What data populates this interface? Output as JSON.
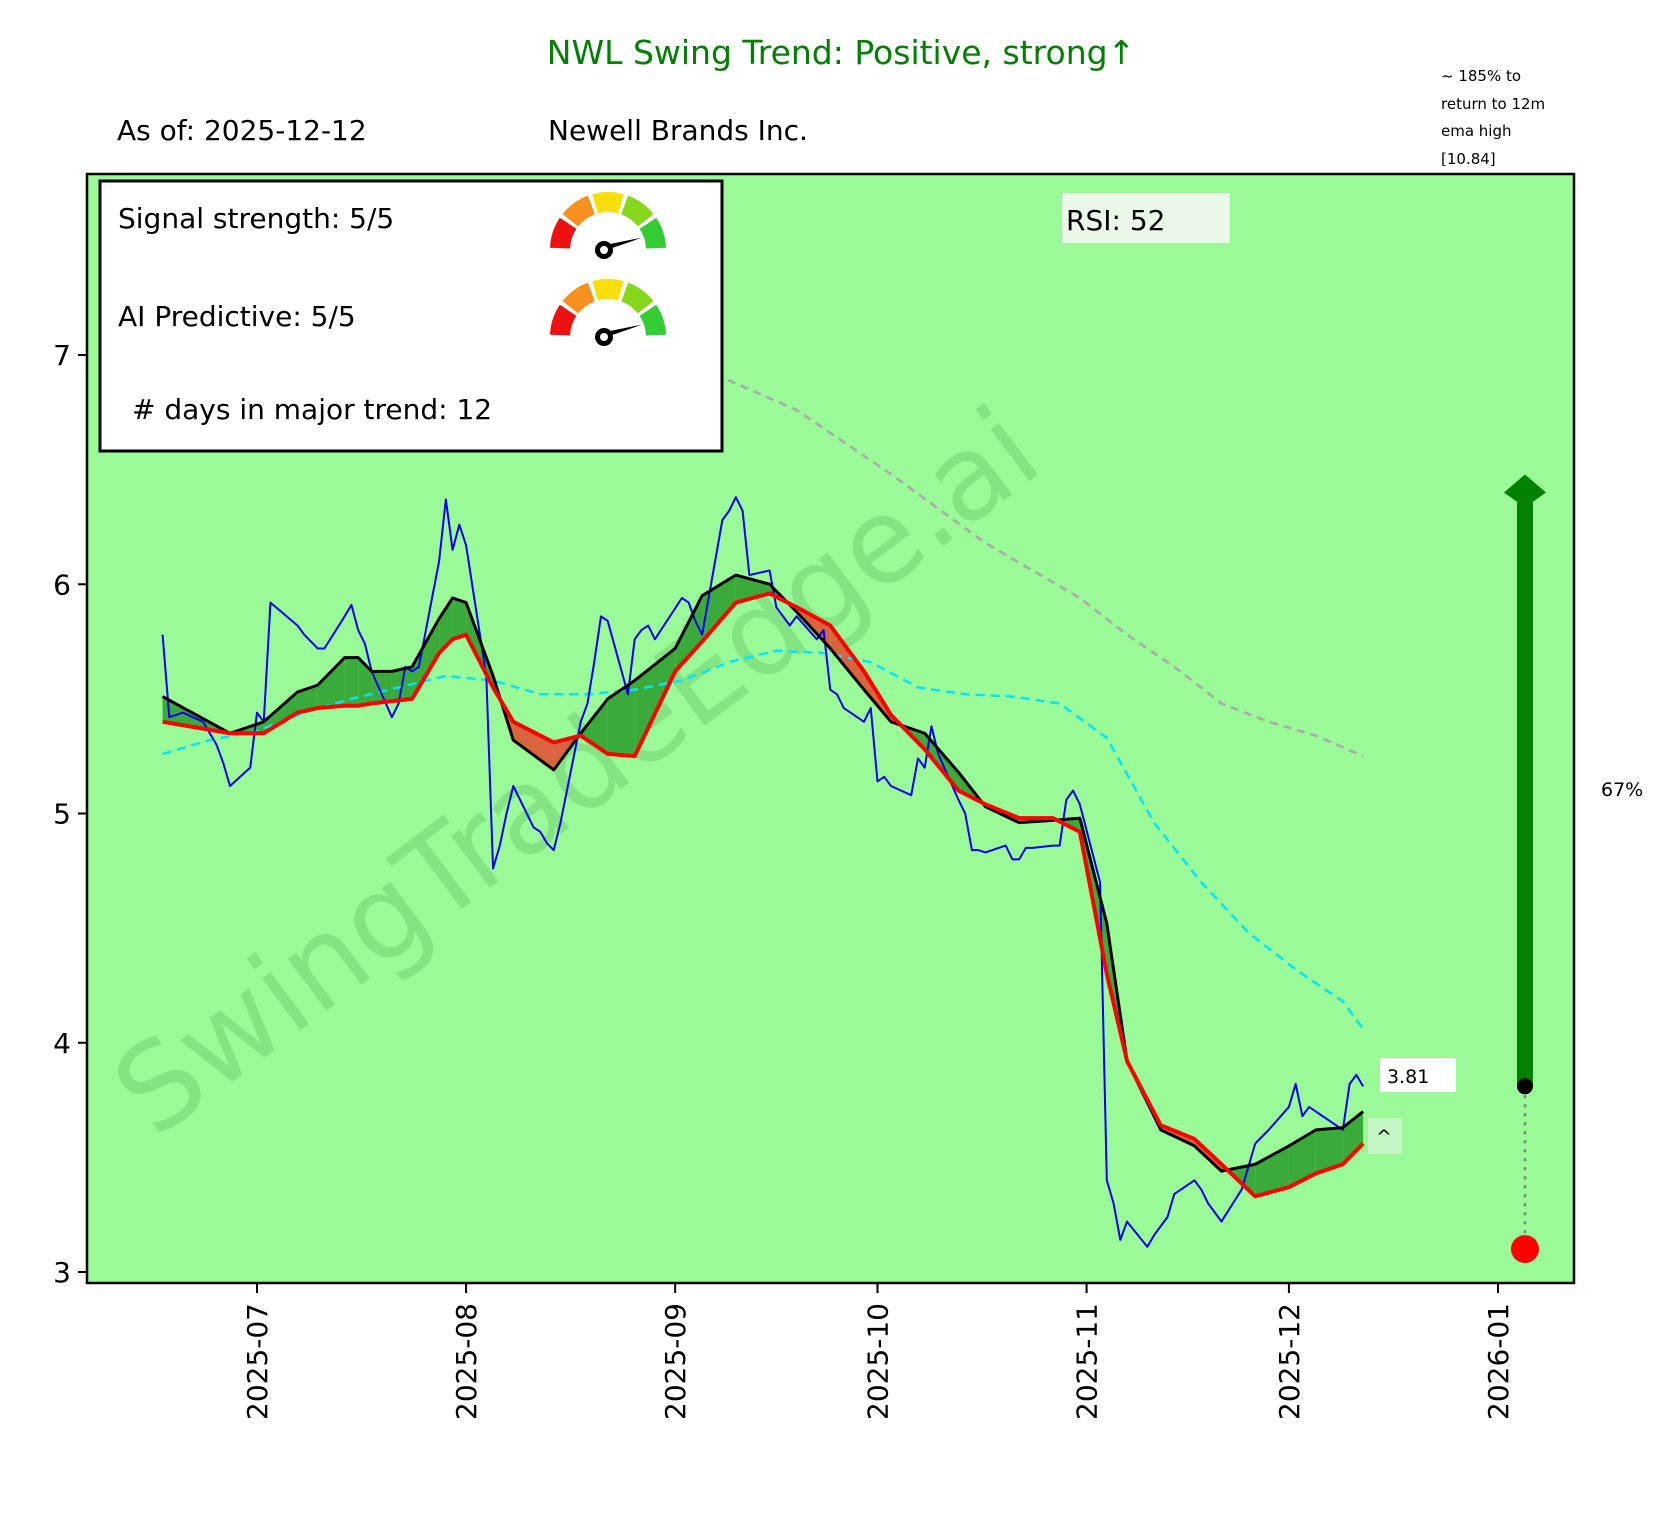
{
  "header": {
    "title": "NWL  Swing Trend: Positive, strong↑",
    "subtitle_date": "As of: 2025-12-12",
    "subtitle_company": "Newell Brands Inc.",
    "ema_note": [
      "~ 185% to",
      "return to 12m",
      "ema high",
      "[10.84]"
    ]
  },
  "info_box": {
    "signal_strength": "Signal strength: 5/5",
    "signal_strength_value": 5,
    "ai_predictive": "AI Predictive: 5/5",
    "ai_predictive_value": 5,
    "days_in_trend": "# days in major trend: 12"
  },
  "rsi_label": "RSI:  52",
  "watermark": "SwingTradeEdge.ai",
  "price_label": "3.81",
  "caret_label": "^",
  "target_pct_label": "67%",
  "colors": {
    "background": "#9afa98",
    "title": "#008000",
    "price": "#0000ee",
    "fast": "#000000",
    "slow": "#ff0000",
    "cyan": "#00e5ff",
    "gray": "#a9a9a9",
    "fill_up": "#3aaa3a",
    "fill_down": "#d9653f",
    "arrow": "#008000"
  },
  "chart_data": {
    "type": "line",
    "title": "NWL  Swing Trend: Positive, strong↑",
    "xlabel": "",
    "ylabel": "",
    "ylim": [
      2.9,
      7.8
    ],
    "yticks": [
      3,
      4,
      5,
      6,
      7
    ],
    "xticks": [
      "2025-07",
      "2025-08",
      "2025-09",
      "2025-10",
      "2025-11",
      "2025-12",
      "2026-01"
    ],
    "x_range": [
      "2025-06-13",
      "2026-01-15"
    ],
    "grid": false,
    "series": [
      {
        "name": "price",
        "style": "blue-solid",
        "x": [
          "2025-06-17",
          "2025-06-18",
          "2025-06-20",
          "2025-06-23",
          "2025-06-25",
          "2025-06-26",
          "2025-06-27",
          "2025-06-30",
          "2025-07-01",
          "2025-07-02",
          "2025-07-03",
          "2025-07-07",
          "2025-07-08",
          "2025-07-10",
          "2025-07-11",
          "2025-07-14",
          "2025-07-15",
          "2025-07-16",
          "2025-07-17",
          "2025-07-18",
          "2025-07-21",
          "2025-07-22",
          "2025-07-23",
          "2025-07-24",
          "2025-07-25",
          "2025-07-28",
          "2025-07-29",
          "2025-07-30",
          "2025-07-31",
          "2025-08-01",
          "2025-08-04",
          "2025-08-05",
          "2025-08-06",
          "2025-08-07",
          "2025-08-08",
          "2025-08-11",
          "2025-08-12",
          "2025-08-13",
          "2025-08-14",
          "2025-08-15",
          "2025-08-18",
          "2025-08-19",
          "2025-08-20",
          "2025-08-21",
          "2025-08-22",
          "2025-08-25",
          "2025-08-26",
          "2025-08-27",
          "2025-08-28",
          "2025-08-29",
          "2025-09-02",
          "2025-09-03",
          "2025-09-04",
          "2025-09-05",
          "2025-09-08",
          "2025-09-09",
          "2025-09-10",
          "2025-09-11",
          "2025-09-12",
          "2025-09-15",
          "2025-09-16",
          "2025-09-17",
          "2025-09-18",
          "2025-09-19",
          "2025-09-22",
          "2025-09-23",
          "2025-09-24",
          "2025-09-25",
          "2025-09-26",
          "2025-09-29",
          "2025-09-30",
          "2025-10-01",
          "2025-10-02",
          "2025-10-03",
          "2025-10-06",
          "2025-10-07",
          "2025-10-08",
          "2025-10-09",
          "2025-10-10",
          "2025-10-13",
          "2025-10-14",
          "2025-10-15",
          "2025-10-16",
          "2025-10-17",
          "2025-10-20",
          "2025-10-21",
          "2025-10-22",
          "2025-10-23",
          "2025-10-24",
          "2025-10-27",
          "2025-10-28",
          "2025-10-29",
          "2025-10-30",
          "2025-10-31",
          "2025-11-03",
          "2025-11-04",
          "2025-11-05",
          "2025-11-06",
          "2025-11-07",
          "2025-11-10",
          "2025-11-11",
          "2025-11-12",
          "2025-11-13",
          "2025-11-14",
          "2025-11-17",
          "2025-11-18",
          "2025-11-19",
          "2025-11-20",
          "2025-11-21",
          "2025-11-24",
          "2025-11-25",
          "2025-11-26",
          "2025-11-28",
          "2025-12-01",
          "2025-12-02",
          "2025-12-03",
          "2025-12-04",
          "2025-12-05",
          "2025-12-08",
          "2025-12-09",
          "2025-12-10",
          "2025-12-11",
          "2025-12-12"
        ],
        "y": [
          5.78,
          5.42,
          5.44,
          5.4,
          5.3,
          5.22,
          5.12,
          5.2,
          5.44,
          5.4,
          5.92,
          5.82,
          5.78,
          5.72,
          5.72,
          5.86,
          5.91,
          5.8,
          5.74,
          5.62,
          5.42,
          5.48,
          5.64,
          5.62,
          5.64,
          6.1,
          6.37,
          6.15,
          6.26,
          6.17,
          5.6,
          4.76,
          4.86,
          5.0,
          5.12,
          4.94,
          4.92,
          4.87,
          4.84,
          4.96,
          5.4,
          5.48,
          5.66,
          5.86,
          5.84,
          5.52,
          5.76,
          5.8,
          5.82,
          5.76,
          5.94,
          5.92,
          5.84,
          5.78,
          6.28,
          6.32,
          6.38,
          6.32,
          6.04,
          6.06,
          5.9,
          5.86,
          5.82,
          5.86,
          5.76,
          5.8,
          5.54,
          5.52,
          5.46,
          5.4,
          5.46,
          5.14,
          5.16,
          5.12,
          5.08,
          5.24,
          5.2,
          5.38,
          5.26,
          5.06,
          5.0,
          4.84,
          4.84,
          4.83,
          4.86,
          4.8,
          4.8,
          4.85,
          4.85,
          4.86,
          4.86,
          5.06,
          5.1,
          5.04,
          4.7,
          3.4,
          3.3,
          3.14,
          3.22,
          3.11,
          3.16,
          3.2,
          3.24,
          3.34,
          3.4,
          3.36,
          3.3,
          3.26,
          3.22,
          3.36,
          3.46,
          3.56,
          3.62,
          3.72,
          3.82,
          3.68,
          3.72,
          3.7,
          3.64,
          3.62,
          3.82,
          3.86,
          3.81
        ]
      },
      {
        "name": "fast_ema",
        "style": "black-solid",
        "x": [
          "2025-06-17",
          "2025-06-27",
          "2025-07-02",
          "2025-07-07",
          "2025-07-10",
          "2025-07-14",
          "2025-07-16",
          "2025-07-18",
          "2025-07-21",
          "2025-07-24",
          "2025-07-28",
          "2025-07-30",
          "2025-08-01",
          "2025-08-05",
          "2025-08-08",
          "2025-08-14",
          "2025-08-18",
          "2025-08-22",
          "2025-08-26",
          "2025-09-01",
          "2025-09-05",
          "2025-09-10",
          "2025-09-15",
          "2025-09-19",
          "2025-09-24",
          "2025-09-29",
          "2025-10-03",
          "2025-10-08",
          "2025-10-13",
          "2025-10-17",
          "2025-10-22",
          "2025-10-27",
          "2025-10-31",
          "2025-11-04",
          "2025-11-07",
          "2025-11-12",
          "2025-11-17",
          "2025-11-21",
          "2025-11-26",
          "2025-12-01",
          "2025-12-05",
          "2025-12-09",
          "2025-12-12"
        ],
        "y": [
          5.51,
          5.35,
          5.4,
          5.53,
          5.56,
          5.68,
          5.68,
          5.62,
          5.62,
          5.64,
          5.85,
          5.94,
          5.92,
          5.6,
          5.32,
          5.19,
          5.35,
          5.5,
          5.58,
          5.72,
          5.95,
          6.04,
          6.0,
          5.88,
          5.72,
          5.54,
          5.4,
          5.35,
          5.18,
          5.03,
          4.96,
          4.97,
          4.98,
          4.52,
          3.92,
          3.62,
          3.55,
          3.44,
          3.47,
          3.55,
          3.62,
          3.63,
          3.7
        ]
      },
      {
        "name": "slow_ema",
        "style": "red-solid",
        "x": [
          "2025-06-17",
          "2025-06-27",
          "2025-07-02",
          "2025-07-07",
          "2025-07-10",
          "2025-07-14",
          "2025-07-16",
          "2025-07-18",
          "2025-07-21",
          "2025-07-24",
          "2025-07-28",
          "2025-07-30",
          "2025-08-01",
          "2025-08-05",
          "2025-08-08",
          "2025-08-14",
          "2025-08-18",
          "2025-08-22",
          "2025-08-26",
          "2025-09-01",
          "2025-09-05",
          "2025-09-10",
          "2025-09-15",
          "2025-09-19",
          "2025-09-24",
          "2025-09-29",
          "2025-10-03",
          "2025-10-08",
          "2025-10-13",
          "2025-10-17",
          "2025-10-22",
          "2025-10-27",
          "2025-10-31",
          "2025-11-04",
          "2025-11-07",
          "2025-11-12",
          "2025-11-17",
          "2025-11-21",
          "2025-11-26",
          "2025-12-01",
          "2025-12-05",
          "2025-12-09",
          "2025-12-12"
        ],
        "y": [
          5.4,
          5.35,
          5.35,
          5.44,
          5.46,
          5.47,
          5.47,
          5.48,
          5.49,
          5.5,
          5.7,
          5.76,
          5.78,
          5.55,
          5.4,
          5.31,
          5.34,
          5.26,
          5.25,
          5.62,
          5.75,
          5.92,
          5.96,
          5.9,
          5.82,
          5.62,
          5.43,
          5.28,
          5.1,
          5.04,
          4.98,
          4.98,
          4.92,
          4.3,
          3.92,
          3.64,
          3.58,
          3.47,
          3.33,
          3.37,
          3.43,
          3.47,
          3.56
        ]
      },
      {
        "name": "cyan_ma",
        "style": "cyan-dashed",
        "x": [
          "2025-06-17",
          "2025-06-24",
          "2025-07-01",
          "2025-07-08",
          "2025-07-15",
          "2025-07-22",
          "2025-07-29",
          "2025-08-05",
          "2025-08-12",
          "2025-08-19",
          "2025-08-26",
          "2025-09-02",
          "2025-09-09",
          "2025-09-16",
          "2025-09-23",
          "2025-09-30",
          "2025-10-07",
          "2025-10-14",
          "2025-10-21",
          "2025-10-28",
          "2025-11-04",
          "2025-11-11",
          "2025-11-18",
          "2025-11-25",
          "2025-12-02",
          "2025-12-09",
          "2025-12-12"
        ],
        "y": [
          5.26,
          5.32,
          5.36,
          5.44,
          5.5,
          5.55,
          5.6,
          5.58,
          5.52,
          5.52,
          5.54,
          5.58,
          5.66,
          5.71,
          5.7,
          5.66,
          5.55,
          5.52,
          5.51,
          5.48,
          5.33,
          4.96,
          4.7,
          4.48,
          4.32,
          4.18,
          4.06
        ]
      },
      {
        "name": "gray_ma",
        "style": "gray-dashed",
        "x": [
          "2025-09-05",
          "2025-09-12",
          "2025-09-19",
          "2025-09-26",
          "2025-10-03",
          "2025-10-10",
          "2025-10-17",
          "2025-10-24",
          "2025-10-31",
          "2025-11-07",
          "2025-11-14",
          "2025-11-21",
          "2025-11-28",
          "2025-12-05",
          "2025-12-12"
        ],
        "y": [
          6.94,
          6.85,
          6.76,
          6.62,
          6.48,
          6.33,
          6.18,
          6.06,
          5.94,
          5.78,
          5.64,
          5.48,
          5.4,
          5.34,
          5.25
        ]
      }
    ],
    "annotations": [
      {
        "type": "target_arrow",
        "x": "2026-01-05",
        "from": 3.81,
        "to": 6.4,
        "label": "67%"
      },
      {
        "type": "stop_marker",
        "x": "2026-01-05",
        "from": 3.81,
        "to": 3.1
      },
      {
        "type": "last_price",
        "value": 3.81,
        "label": "3.81"
      }
    ]
  }
}
